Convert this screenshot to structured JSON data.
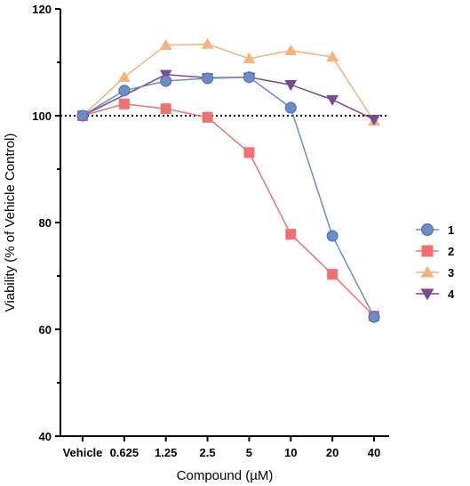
{
  "chart_data": {
    "type": "line",
    "title": "",
    "xlabel": "Compound (µM)",
    "ylabel": "Viability (% of Vehicle Control)",
    "categories": [
      "Vehicle",
      "0.625",
      "1.25",
      "2.5",
      "5",
      "10",
      "20",
      "40"
    ],
    "ylim": [
      40,
      120
    ],
    "yticks": [
      "40",
      "60",
      "80",
      "100",
      "120"
    ],
    "reference_line": {
      "y": 100,
      "style": "dotted"
    },
    "legend_position": "right",
    "series": [
      {
        "name": "1",
        "marker": "circle",
        "color": "#6b8cc7",
        "values": [
          100,
          104.7,
          106.5,
          107,
          107.2,
          101.5,
          77.5,
          62.3
        ]
      },
      {
        "name": "2",
        "marker": "square",
        "color": "#f07070",
        "values": [
          100,
          102.2,
          101.3,
          99.7,
          93.1,
          77.8,
          70.3,
          62.5
        ]
      },
      {
        "name": "3",
        "marker": "triangle-up",
        "color": "#f7b27a",
        "values": [
          100,
          107.2,
          113.2,
          113.4,
          110.7,
          112.2,
          111,
          99
        ]
      },
      {
        "name": "4",
        "marker": "triangle-down",
        "color": "#7a4a94",
        "values": [
          100,
          null,
          107.7,
          107.1,
          107.2,
          105.8,
          103,
          99.3
        ]
      }
    ]
  }
}
